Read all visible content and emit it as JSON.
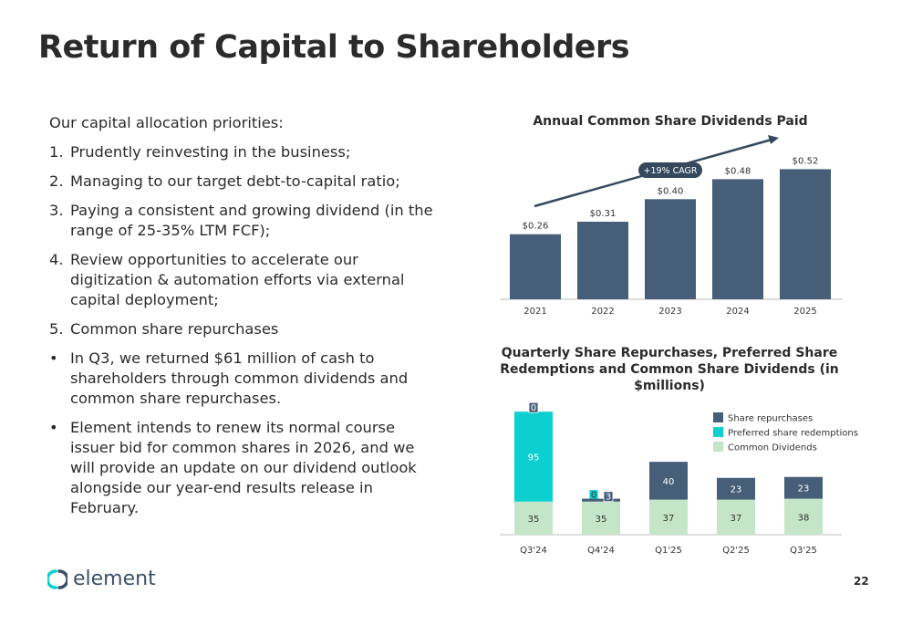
{
  "page": {
    "title": "Return of Capital to Shareholders",
    "page_number": "22",
    "logo_text": "element"
  },
  "left_text": {
    "intro": "Our capital allocation priorities:",
    "priorities": [
      {
        "marker": "1.",
        "text": "Prudently reinvesting in the business;"
      },
      {
        "marker": "2.",
        "text": "Managing to our target debt-to-capital ratio;"
      },
      {
        "marker": "3.",
        "text": "Paying a consistent and growing dividend (in the range of 25-35% LTM FCF);"
      },
      {
        "marker": "4.",
        "text": "Review opportunities to accelerate our digitization & automation efforts via external capital deployment;"
      },
      {
        "marker": "5.",
        "text": "Common share repurchases"
      }
    ],
    "bullets": [
      {
        "marker": "•",
        "text": "In Q3, we returned $61 million of cash to shareholders through common dividends and common share repurchases."
      },
      {
        "marker": "•",
        "text": "Element intends to renew its normal course issuer bid for common shares in 2026, and we will provide an update on our dividend outlook alongside our year-end results release in February."
      }
    ]
  },
  "chart_data": [
    {
      "type": "bar",
      "title": "Annual Common Share Dividends Paid",
      "categories": [
        "2021",
        "2022",
        "2023",
        "2024",
        "2025"
      ],
      "values": [
        0.26,
        0.31,
        0.4,
        0.48,
        0.52
      ],
      "value_labels": [
        "$0.26",
        "$0.31",
        "$0.40",
        "$0.48",
        "$0.52"
      ],
      "annotation": "+19% CAGR",
      "ylim": [
        0,
        0.62
      ],
      "colors": {
        "bar": "#465e78",
        "arrow": "#34495e",
        "badge": "#34495e"
      }
    },
    {
      "type": "bar",
      "stacked": true,
      "title": "Quarterly Share Repurchases, Preferred Share Redemptions and Common Share Dividends (in $millions)",
      "categories": [
        "Q3'24",
        "Q4'24",
        "Q1'25",
        "Q2'25",
        "Q3'25"
      ],
      "series": [
        {
          "name": "Common Dividends",
          "values": [
            35,
            35,
            37,
            37,
            38
          ],
          "color": "#c5e5c8"
        },
        {
          "name": "Preferred share redemptions",
          "values": [
            95,
            0,
            0,
            0,
            0
          ],
          "color": "#0ccfd0"
        },
        {
          "name": "Share repurchases",
          "values": [
            0,
            3,
            40,
            23,
            23
          ],
          "color": "#465e78"
        }
      ],
      "legend_position": "right",
      "ylim": [
        0,
        135
      ]
    }
  ]
}
